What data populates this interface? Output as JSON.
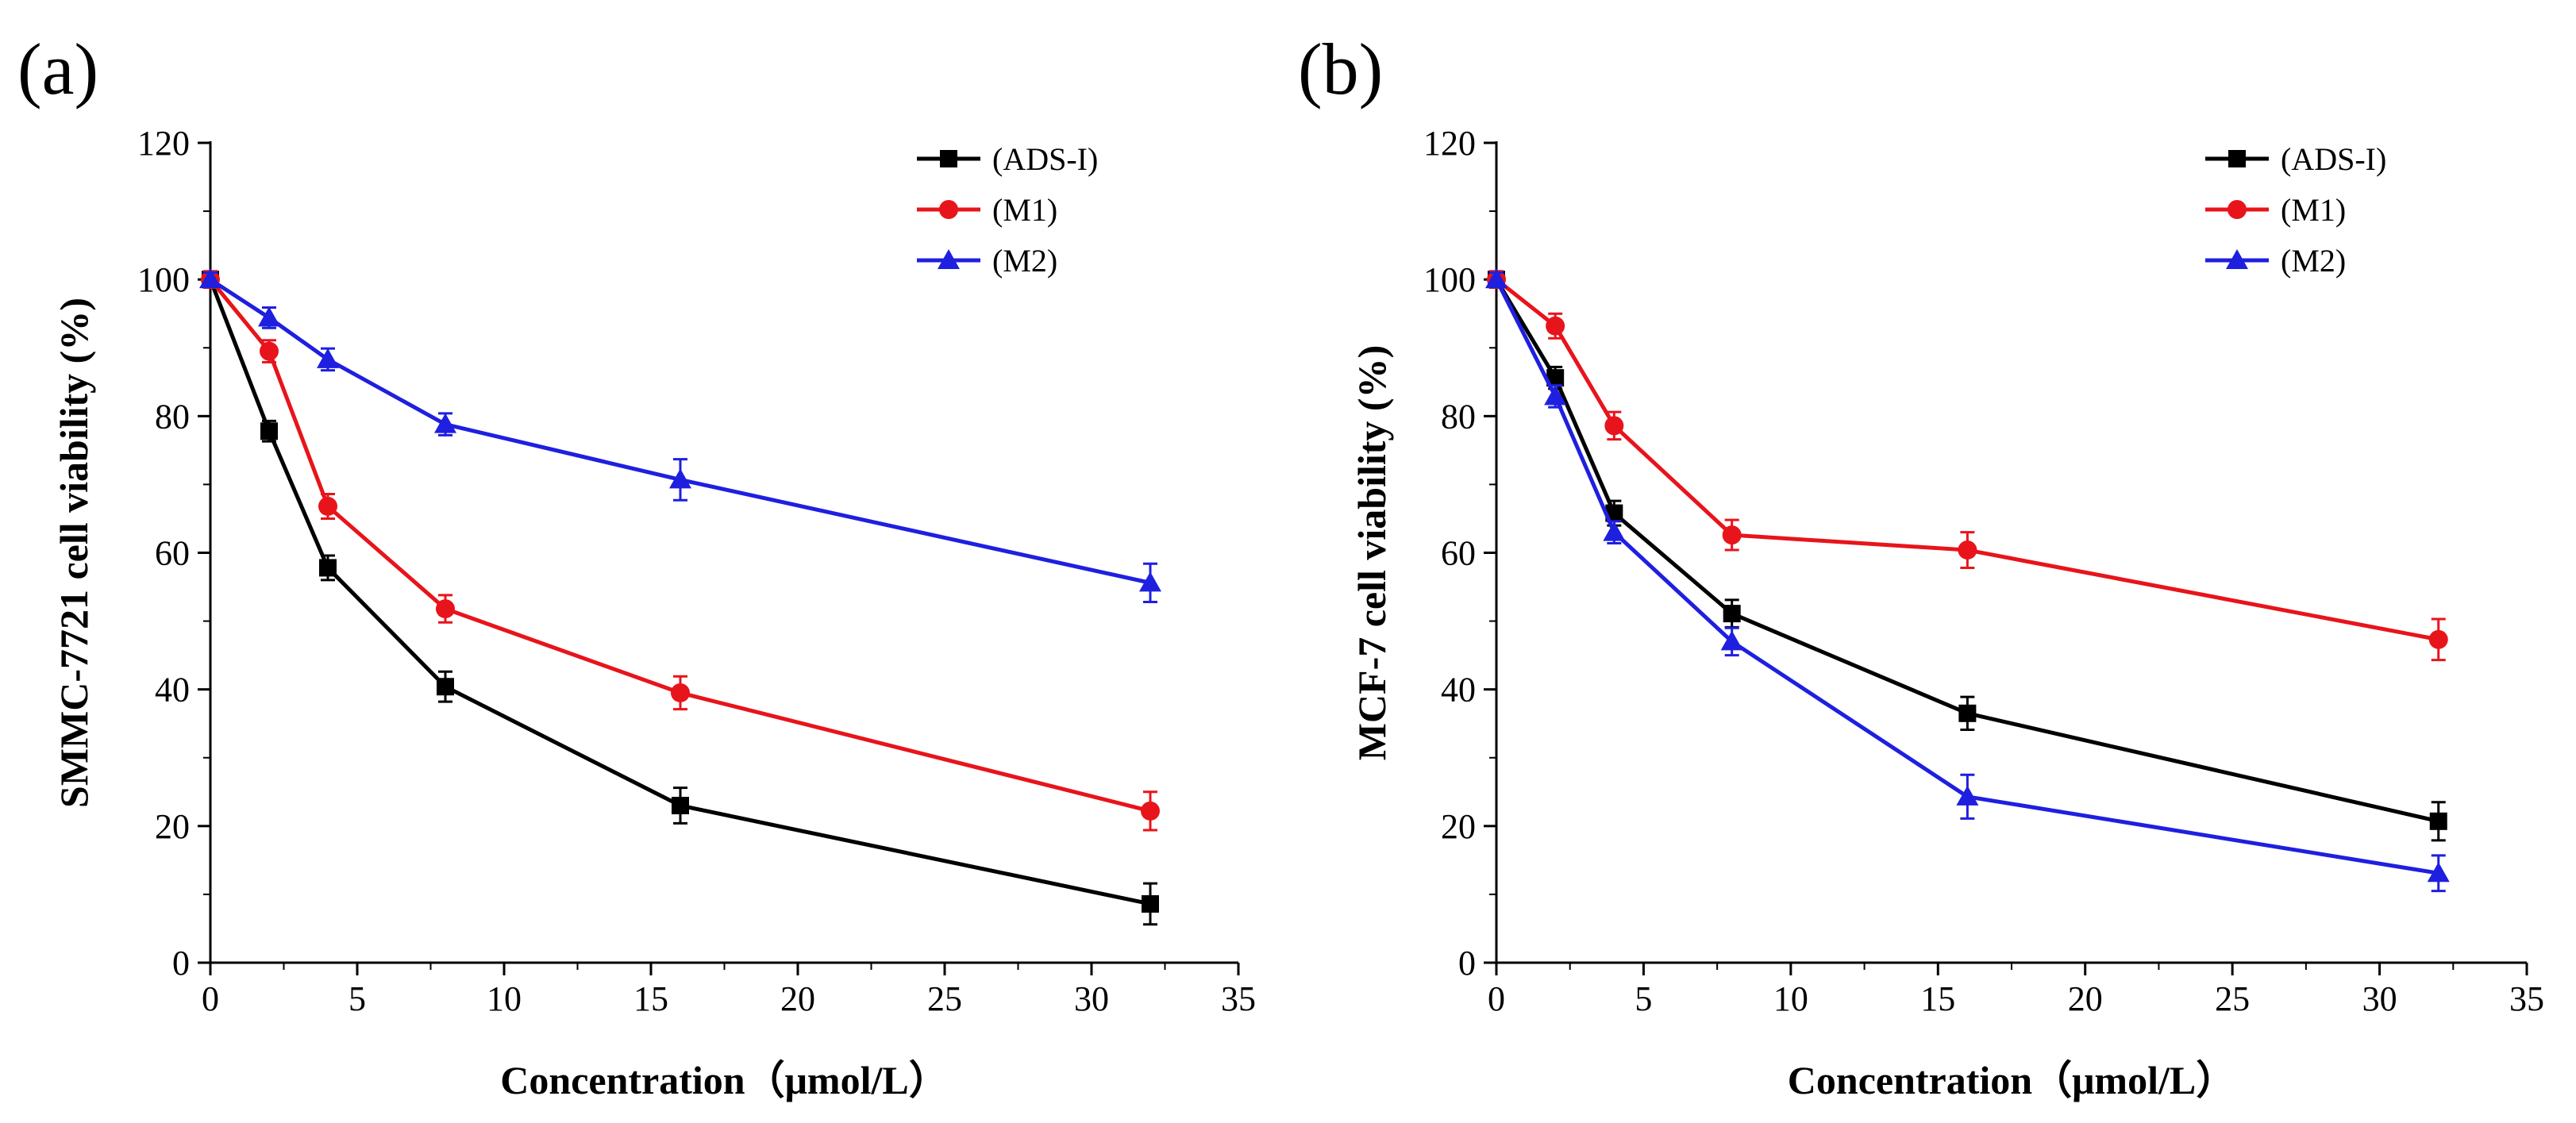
{
  "chart_data": [
    {
      "type": "line",
      "panel_label": "(a)",
      "xlabel": "Concentration（μmol/L）",
      "ylabel": "SMMC-7721 cell viability (%)",
      "xlim": [
        0,
        35
      ],
      "ylim": [
        0,
        120
      ],
      "xticks": [
        "0",
        "5",
        "10",
        "15",
        "20",
        "25",
        "30",
        "35"
      ],
      "yticks": [
        "0",
        "20",
        "40",
        "60",
        "80",
        "100",
        "120"
      ],
      "legend_position": "top-right",
      "x": [
        0,
        2,
        4,
        8,
        16,
        32
      ],
      "series": [
        {
          "name": "(ADS-I)",
          "color": "#000000",
          "marker": "square",
          "values": [
            100,
            77.8,
            57.8,
            40.4,
            23.0,
            8.6
          ],
          "errors": [
            1.2,
            1.5,
            1.8,
            2.2,
            2.6,
            3.0
          ]
        },
        {
          "name": "(M1)",
          "color": "#e8141b",
          "marker": "circle",
          "values": [
            100,
            89.5,
            66.8,
            51.8,
            39.5,
            22.2
          ],
          "errors": [
            1.2,
            1.6,
            1.8,
            2.0,
            2.4,
            2.8
          ]
        },
        {
          "name": "(M2)",
          "color": "#1f1fe0",
          "marker": "triangle",
          "values": [
            100,
            94.4,
            88.3,
            78.8,
            70.7,
            55.6
          ],
          "errors": [
            1.0,
            1.5,
            1.6,
            1.6,
            3.0,
            2.8
          ]
        }
      ]
    },
    {
      "type": "line",
      "panel_label": "(b)",
      "xlabel": "Concentration（μmol/L）",
      "ylabel": "MCF-7 cell viability (%)",
      "xlim": [
        0,
        35
      ],
      "ylim": [
        0,
        120
      ],
      "xticks": [
        "0",
        "5",
        "10",
        "15",
        "20",
        "25",
        "30",
        "35"
      ],
      "yticks": [
        "0",
        "20",
        "40",
        "60",
        "80",
        "100",
        "120"
      ],
      "legend_position": "top-right",
      "x": [
        0,
        2,
        4,
        8,
        16,
        32
      ],
      "series": [
        {
          "name": "(ADS-I)",
          "color": "#000000",
          "marker": "square",
          "values": [
            100,
            85.6,
            65.8,
            51.1,
            36.5,
            20.7
          ],
          "errors": [
            1.2,
            1.6,
            1.8,
            2.0,
            2.4,
            2.8
          ]
        },
        {
          "name": "(M1)",
          "color": "#e8141b",
          "marker": "circle",
          "values": [
            100,
            93.2,
            78.6,
            62.6,
            60.4,
            47.3
          ],
          "errors": [
            1.2,
            1.8,
            2.0,
            2.2,
            2.6,
            3.0
          ]
        },
        {
          "name": "(M2)",
          "color": "#1f1fe0",
          "marker": "triangle",
          "values": [
            100,
            82.9,
            63.0,
            47.0,
            24.3,
            13.1
          ],
          "errors": [
            1.0,
            1.6,
            1.6,
            2.0,
            3.2,
            2.6
          ]
        }
      ]
    }
  ]
}
